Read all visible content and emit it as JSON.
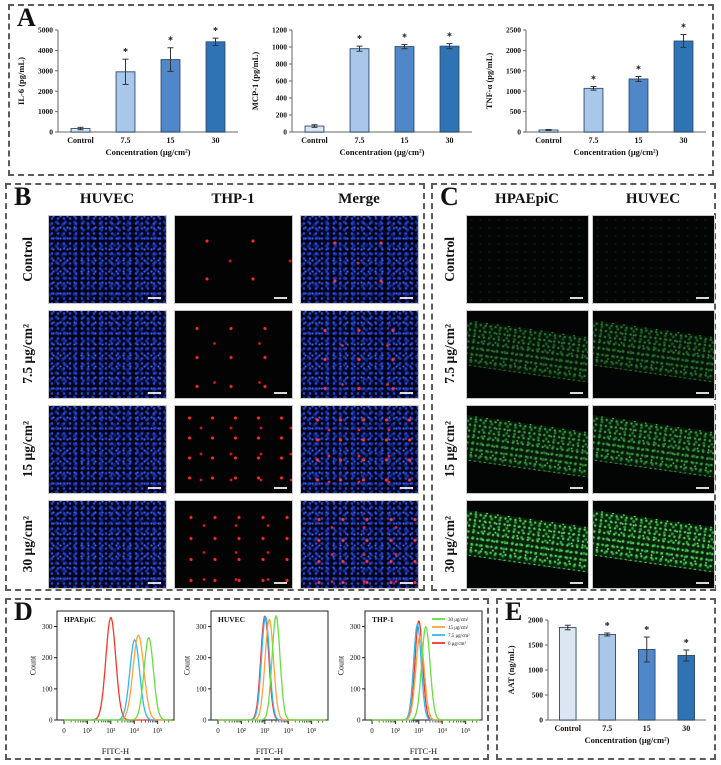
{
  "panels": {
    "a": {
      "label": "A"
    },
    "b": {
      "label": "B",
      "col_headers": [
        "HUVEC",
        "THP-1",
        "Merge"
      ],
      "row_labels": [
        "Control",
        "7.5 μg/cm²",
        "15 μg/cm²",
        "30 μg/cm²"
      ]
    },
    "c": {
      "label": "C",
      "col_headers": [
        "HPAEpiC",
        "HUVEC"
      ],
      "row_labels": [
        "Control",
        "7.5 μg/cm²",
        "15 μg/cm²",
        "30 μg/cm²"
      ]
    },
    "d": {
      "label": "D"
    },
    "e": {
      "label": "E"
    }
  },
  "bar_colors": [
    "#dce6f2",
    "#a9c7e9",
    "#4f87c8",
    "#2e74b5"
  ],
  "chart_data": [
    {
      "id": "il6",
      "panel": "A",
      "type": "bar",
      "categories": [
        "Control",
        "7.5",
        "15",
        "30"
      ],
      "values": [
        170,
        2950,
        3550,
        4420
      ],
      "errors": [
        60,
        620,
        580,
        180
      ],
      "sig": [
        "",
        "*",
        "*",
        "*"
      ],
      "xlabel": "Concentration (μg/cm²)",
      "ylabel": "IL-6 (pg/mL)",
      "ylim": [
        0,
        5000
      ],
      "ytick": 1000
    },
    {
      "id": "mcp1",
      "panel": "A",
      "type": "bar",
      "categories": [
        "Control",
        "7.5",
        "15",
        "30"
      ],
      "values": [
        70,
        980,
        1005,
        1010
      ],
      "errors": [
        15,
        30,
        25,
        30
      ],
      "sig": [
        "",
        "*",
        "*",
        "*"
      ],
      "xlabel": "Concentration (μg/cm²)",
      "ylabel": "MCP-1 (pg/mL)",
      "ylim": [
        0,
        1200
      ],
      "ytick": 200
    },
    {
      "id": "tnfa",
      "panel": "A",
      "type": "bar",
      "categories": [
        "Control",
        "7.5",
        "15",
        "30"
      ],
      "values": [
        50,
        1070,
        1300,
        2230
      ],
      "errors": [
        12,
        45,
        60,
        160
      ],
      "sig": [
        "",
        "*",
        "*",
        "*"
      ],
      "xlabel": "Concentration (μg/cm²)",
      "ylabel": "TNF-α (pg/mL)",
      "ylim": [
        0,
        2500
      ],
      "ytick": 500
    },
    {
      "id": "flow_hpaepic",
      "panel": "D",
      "type": "line",
      "title": "HPAEpiC",
      "xlabel": "FITC-H",
      "ylabel": "Count",
      "ylim": [
        0,
        350
      ],
      "yticks": [
        0,
        100,
        200,
        300
      ],
      "xticks": [
        "0",
        "10²",
        "10³",
        "10⁴",
        "10⁵"
      ],
      "show_legend": false,
      "series": [
        {
          "name": "0 μg/cm²",
          "color": "#f93526",
          "peak_log10": 3.0,
          "peak_count": 330,
          "sigma": 0.21
        },
        {
          "name": "7.5 μg/cm²",
          "color": "#2fb9f2",
          "peak_log10": 4.02,
          "peak_count": 258,
          "sigma": 0.21
        },
        {
          "name": "15 μg/cm²",
          "color": "#ffa23e",
          "peak_log10": 4.18,
          "peak_count": 273,
          "sigma": 0.23
        },
        {
          "name": "30 μg/cm²",
          "color": "#66df41",
          "peak_log10": 4.62,
          "peak_count": 265,
          "sigma": 0.2
        }
      ]
    },
    {
      "id": "flow_huvec",
      "panel": "D",
      "type": "line",
      "title": "HUVEC",
      "xlabel": "FITC-H",
      "ylabel": "Count",
      "ylim": [
        0,
        350
      ],
      "yticks": [
        0,
        100,
        200,
        300
      ],
      "xticks": [
        "0",
        "10²",
        "10³",
        "10⁴",
        "10⁵"
      ],
      "show_legend": false,
      "series": [
        {
          "name": "0 μg/cm²",
          "color": "#f93526",
          "peak_log10": 3.0,
          "peak_count": 335,
          "sigma": 0.17
        },
        {
          "name": "7.5 μg/cm²",
          "color": "#2fb9f2",
          "peak_log10": 3.03,
          "peak_count": 333,
          "sigma": 0.17
        },
        {
          "name": "15 μg/cm²",
          "color": "#ffa23e",
          "peak_log10": 3.19,
          "peak_count": 324,
          "sigma": 0.18
        },
        {
          "name": "30 μg/cm²",
          "color": "#66df41",
          "peak_log10": 3.48,
          "peak_count": 335,
          "sigma": 0.17
        }
      ]
    },
    {
      "id": "flow_thp1",
      "panel": "D",
      "type": "line",
      "title": "THP-1",
      "xlabel": "FITC-H",
      "ylabel": "Count",
      "ylim": [
        0,
        350
      ],
      "yticks": [
        0,
        100,
        200,
        300
      ],
      "xticks": [
        "0",
        "10²",
        "10³",
        "10⁴",
        "10⁵"
      ],
      "show_legend": true,
      "legend": [
        "30 μg/cm²",
        "15 μg/cm²",
        "7.5 μg/cm²",
        "0 μg/cm²"
      ],
      "series": [
        {
          "name": "0 μg/cm²",
          "color": "#f93526",
          "peak_log10": 3.0,
          "peak_count": 320,
          "sigma": 0.16
        },
        {
          "name": "7.5 μg/cm²",
          "color": "#2fb9f2",
          "peak_log10": 2.94,
          "peak_count": 308,
          "sigma": 0.16
        },
        {
          "name": "15 μg/cm²",
          "color": "#ffa23e",
          "peak_log10": 3.05,
          "peak_count": 270,
          "sigma": 0.18
        },
        {
          "name": "30 μg/cm²",
          "color": "#66df41",
          "peak_log10": 3.3,
          "peak_count": 300,
          "sigma": 0.18
        }
      ]
    },
    {
      "id": "aat",
      "panel": "E",
      "type": "bar",
      "categories": [
        "Control",
        "7.5",
        "15",
        "30"
      ],
      "values": [
        1850,
        1710,
        1410,
        1290
      ],
      "errors": [
        45,
        30,
        250,
        110
      ],
      "sig": [
        "",
        "*",
        "*",
        "*"
      ],
      "xlabel": "Concentration (μg/cm²)",
      "ylabel": "AAT (ng/mL)",
      "ylim": [
        0,
        2000
      ],
      "ytick": 500
    }
  ]
}
